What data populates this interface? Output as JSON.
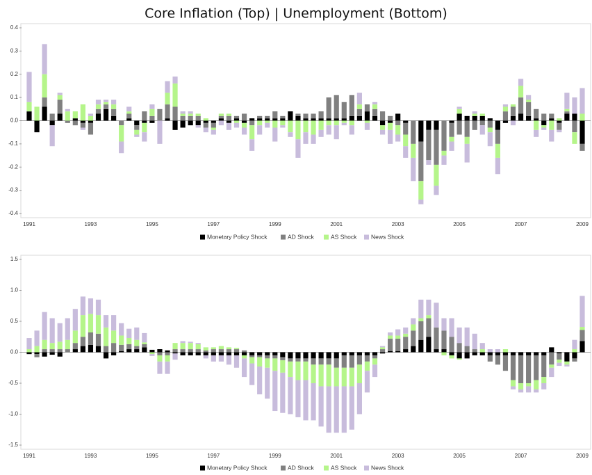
{
  "title": "Core Inflation (Top) | Unemployment (Bottom)",
  "chart_data": [
    {
      "type": "bar",
      "stacked": true,
      "categories": [
        "1991",
        null,
        null,
        null,
        null,
        null,
        null,
        null,
        "1993",
        null,
        null,
        null,
        null,
        null,
        null,
        null,
        "1995",
        null,
        null,
        null,
        null,
        null,
        null,
        null,
        "1997",
        null,
        null,
        null,
        null,
        null,
        null,
        null,
        "1999",
        null,
        null,
        null,
        null,
        null,
        null,
        null,
        "2001",
        null,
        null,
        null,
        null,
        null,
        null,
        null,
        "2003",
        null,
        null,
        null,
        null,
        null,
        null,
        null,
        "2005",
        null,
        null,
        null,
        null,
        null,
        null,
        null,
        "2007",
        null,
        null,
        null,
        null,
        null,
        null,
        null,
        "2009"
      ],
      "ylim": [
        -0.4,
        0.4
      ],
      "yticks": [
        -0.4,
        -0.3,
        -0.2,
        -0.1,
        {
          "value": 0,
          "label": "0.0"
        },
        0.1,
        0.2,
        0.3,
        0.4
      ],
      "series": [
        {
          "name": "Monetary Policy Shock",
          "color": "#000000",
          "values": [
            0.04,
            -0.05,
            0.06,
            -0.02,
            0.03,
            0,
            0.01,
            -0.01,
            -0.01,
            0.03,
            0.05,
            0.02,
            0,
            0.01,
            -0.02,
            -0.01,
            -0.01,
            0,
            0.01,
            -0.04,
            -0.03,
            -0.02,
            -0.02,
            -0.01,
            -0.01,
            0.01,
            -0.01,
            0.01,
            -0.01,
            0.01,
            0.01,
            0.01,
            0.01,
            0.01,
            0.04,
            0.02,
            0.01,
            0.01,
            0.01,
            0.01,
            0.01,
            0.01,
            0.02,
            0.02,
            0.04,
            0.02,
            -0.02,
            -0.01,
            0.03,
            -0.01,
            0,
            -0.09,
            -0.04,
            -0.04,
            0,
            -0.01,
            0.03,
            0.02,
            0.02,
            0.02,
            0.01,
            -0.04,
            -0.01,
            0.02,
            0.03,
            0.02,
            0.01,
            -0.02,
            0.01,
            -0.01,
            0.03,
            0.03,
            -0.1
          ]
        },
        {
          "name": "AD Shock",
          "color": "#808080",
          "values": [
            0,
            0,
            0.04,
            0.03,
            0.06,
            -0.01,
            -0.02,
            -0.02,
            -0.05,
            0.02,
            0.02,
            0.03,
            -0.02,
            0.02,
            -0.02,
            0.04,
            0.02,
            0.05,
            0.06,
            0.06,
            0.02,
            0.02,
            0.02,
            -0.02,
            -0.02,
            0.01,
            0.02,
            0.01,
            0.03,
            -0.02,
            0.01,
            0.01,
            0.03,
            0.01,
            0,
            0.01,
            0.02,
            0.02,
            0.03,
            0.09,
            0.1,
            0.07,
            0.09,
            0.03,
            0.03,
            0.03,
            0.04,
            0.02,
            -0.02,
            -0.05,
            -0.1,
            -0.17,
            -0.13,
            -0.15,
            -0.13,
            -0.06,
            -0.06,
            -0.07,
            -0.04,
            -0.02,
            -0.03,
            -0.06,
            0.04,
            0.04,
            0.07,
            0.06,
            0.04,
            0.03,
            0.02,
            -0.03,
            0.01,
            -0.05,
            -0.03
          ]
        },
        {
          "name": "AS Shock",
          "color": "#b5f58a",
          "values": [
            0.04,
            0.06,
            0.1,
            0,
            0.02,
            0.04,
            0.03,
            0.07,
            0.02,
            0.02,
            0.01,
            0.02,
            -0.07,
            0.01,
            -0.02,
            -0.04,
            0.03,
            0,
            0.05,
            0.1,
            0.01,
            0.01,
            0.01,
            0.01,
            -0.01,
            0.01,
            0.01,
            -0.01,
            -0.02,
            -0.06,
            -0.02,
            -0.01,
            -0.03,
            -0.02,
            -0.05,
            -0.08,
            -0.05,
            -0.06,
            -0.04,
            -0.02,
            -0.02,
            -0.01,
            -0.02,
            0.02,
            -0.01,
            0.02,
            -0.02,
            -0.03,
            -0.04,
            -0.05,
            -0.06,
            -0.08,
            0,
            -0.09,
            -0.02,
            -0.02,
            0.02,
            -0.03,
            0.01,
            0.01,
            -0.02,
            -0.06,
            0.02,
            0.01,
            0.05,
            0.01,
            -0.04,
            -0.01,
            -0.04,
            0.01,
            0.01,
            -0.05,
            0.03
          ]
        },
        {
          "name": "News Shock",
          "color": "#c8bcdc",
          "values": [
            0.13,
            0,
            0.13,
            -0.09,
            0.01,
            0.01,
            0,
            -0.01,
            0.01,
            0.02,
            0.01,
            0.02,
            -0.05,
            0.02,
            -0.01,
            -0.04,
            0.02,
            -0.1,
            0.05,
            0.03,
            0.01,
            0.01,
            -0.01,
            -0.02,
            -0.02,
            -0.02,
            -0.03,
            -0.02,
            -0.03,
            -0.05,
            -0.04,
            -0.02,
            -0.06,
            -0.01,
            -0.02,
            -0.08,
            -0.05,
            -0.04,
            -0.03,
            -0.04,
            -0.06,
            -0.01,
            -0.04,
            0.05,
            -0.03,
            0.01,
            -0.02,
            -0.06,
            -0.03,
            -0.05,
            -0.1,
            -0.02,
            -0.02,
            -0.04,
            -0.04,
            -0.04,
            0.01,
            -0.08,
            0.01,
            -0.04,
            -0.06,
            -0.07,
            0.01,
            -0.02,
            0.03,
            0.02,
            -0.03,
            -0.01,
            -0.05,
            -0.01,
            0.07,
            0.07,
            0.11
          ]
        }
      ]
    },
    {
      "type": "bar",
      "stacked": true,
      "categories": [
        "1991",
        null,
        null,
        null,
        null,
        null,
        null,
        null,
        "1993",
        null,
        null,
        null,
        null,
        null,
        null,
        null,
        "1995",
        null,
        null,
        null,
        null,
        null,
        null,
        null,
        "1997",
        null,
        null,
        null,
        null,
        null,
        null,
        null,
        "1999",
        null,
        null,
        null,
        null,
        null,
        null,
        null,
        "2001",
        null,
        null,
        null,
        null,
        null,
        null,
        null,
        "2003",
        null,
        null,
        null,
        null,
        null,
        null,
        null,
        "2005",
        null,
        null,
        null,
        null,
        null,
        null,
        null,
        "2007",
        null,
        null,
        null,
        null,
        null,
        null,
        null,
        "2009"
      ],
      "ylim": [
        -1.5,
        1.5
      ],
      "yticks": [
        -1.5,
        {
          "value": -1,
          "label": "-1.0"
        },
        -0.5,
        {
          "value": 0,
          "label": "0.0"
        },
        0.5,
        {
          "value": 1,
          "label": "1.0"
        },
        1.5
      ],
      "series": [
        {
          "name": "Monetary Policy Shock",
          "color": "#000000",
          "values": [
            -0.03,
            -0.03,
            -0.07,
            -0.04,
            -0.07,
            0,
            0.05,
            0.1,
            0.12,
            0.1,
            -0.1,
            -0.05,
            0.02,
            0.05,
            0.05,
            0.08,
            0.04,
            0.05,
            0.03,
            -0.02,
            -0.05,
            -0.05,
            -0.05,
            -0.05,
            -0.05,
            -0.05,
            -0.05,
            -0.05,
            -0.05,
            -0.05,
            -0.05,
            -0.05,
            -0.05,
            -0.08,
            -0.1,
            -0.1,
            -0.1,
            -0.1,
            -0.1,
            -0.1,
            -0.1,
            -0.05,
            -0.05,
            -0.05,
            -0.05,
            -0.05,
            -0.02,
            0.02,
            0.02,
            0.05,
            0.1,
            0.2,
            0.25,
            0.05,
            0.05,
            -0.05,
            -0.1,
            -0.1,
            -0.05,
            -0.05,
            -0.05,
            -0.05,
            -0.05,
            -0.05,
            -0.05,
            -0.05,
            -0.05,
            -0.05,
            0.08,
            -0.02,
            -0.15,
            -0.1,
            0.18
          ]
        },
        {
          "name": "AD Shock",
          "color": "#808080",
          "values": [
            0,
            -0.05,
            0.05,
            0.05,
            0.05,
            0.05,
            0.1,
            0.15,
            0.2,
            0.2,
            0.1,
            0.15,
            0.1,
            0.08,
            0.05,
            0.05,
            0,
            -0.05,
            -0.05,
            0.05,
            0.05,
            0.05,
            0.05,
            0.03,
            0.05,
            0.05,
            0.05,
            0.05,
            0.03,
            -0.03,
            -0.03,
            -0.05,
            -0.05,
            -0.05,
            -0.05,
            -0.05,
            -0.05,
            -0.1,
            -0.1,
            -0.1,
            -0.15,
            -0.2,
            -0.2,
            -0.15,
            -0.1,
            -0.05,
            0.05,
            0.2,
            0.2,
            0.2,
            0.25,
            0.3,
            0.3,
            0.35,
            0.3,
            0.25,
            0.15,
            0.1,
            0.05,
            0,
            -0.1,
            -0.15,
            -0.25,
            -0.4,
            -0.45,
            -0.45,
            -0.4,
            -0.35,
            -0.2,
            -0.1,
            0,
            -0.05,
            0.18
          ]
        },
        {
          "name": "AS Shock",
          "color": "#b5f58a",
          "values": [
            0.05,
            0.1,
            0.15,
            0.1,
            0.12,
            0.15,
            0.2,
            0.35,
            0.3,
            0.3,
            0.3,
            0.2,
            0.15,
            0.1,
            0.1,
            0.03,
            -0.03,
            -0.1,
            -0.1,
            0.1,
            0.1,
            0.1,
            0.08,
            0.05,
            0.03,
            0.05,
            0.03,
            0.02,
            -0.05,
            -0.1,
            -0.15,
            -0.15,
            -0.2,
            -0.2,
            -0.25,
            -0.3,
            -0.3,
            -0.3,
            -0.35,
            -0.35,
            -0.3,
            -0.3,
            -0.3,
            -0.3,
            -0.15,
            -0.1,
            0.03,
            0.05,
            0.05,
            0.05,
            0.1,
            0.05,
            0.05,
            0,
            -0.05,
            -0.05,
            -0.02,
            0,
            0,
            0.05,
            0,
            0,
            0.05,
            -0.1,
            -0.1,
            -0.05,
            -0.15,
            -0.1,
            -0.05,
            -0.05,
            -0.05,
            0.05,
            0.05
          ]
        },
        {
          "name": "News Shock",
          "color": "#c8bcdc",
          "values": [
            0.18,
            0.25,
            0.45,
            0.4,
            0.3,
            0.35,
            0.35,
            0.3,
            0.25,
            0.25,
            0.2,
            0.25,
            0.2,
            0.15,
            0.2,
            0.15,
            -0.03,
            -0.2,
            -0.2,
            -0.1,
            0.03,
            0.02,
            0.02,
            -0.05,
            -0.1,
            -0.1,
            -0.15,
            -0.2,
            -0.3,
            -0.35,
            -0.45,
            -0.5,
            -0.65,
            -0.65,
            -0.6,
            -0.6,
            -0.65,
            -0.6,
            -0.65,
            -0.75,
            -0.75,
            -0.75,
            -0.7,
            -0.5,
            -0.35,
            -0.2,
            0.02,
            0.05,
            0.1,
            0.1,
            0.1,
            0.3,
            0.25,
            0.4,
            0.2,
            0.3,
            0.25,
            0.3,
            0.25,
            0.1,
            0.05,
            0.05,
            0,
            -0.05,
            -0.05,
            -0.1,
            -0.05,
            -0.1,
            -0.15,
            -0.05,
            -0.03,
            0.15,
            0.5
          ]
        }
      ]
    }
  ]
}
